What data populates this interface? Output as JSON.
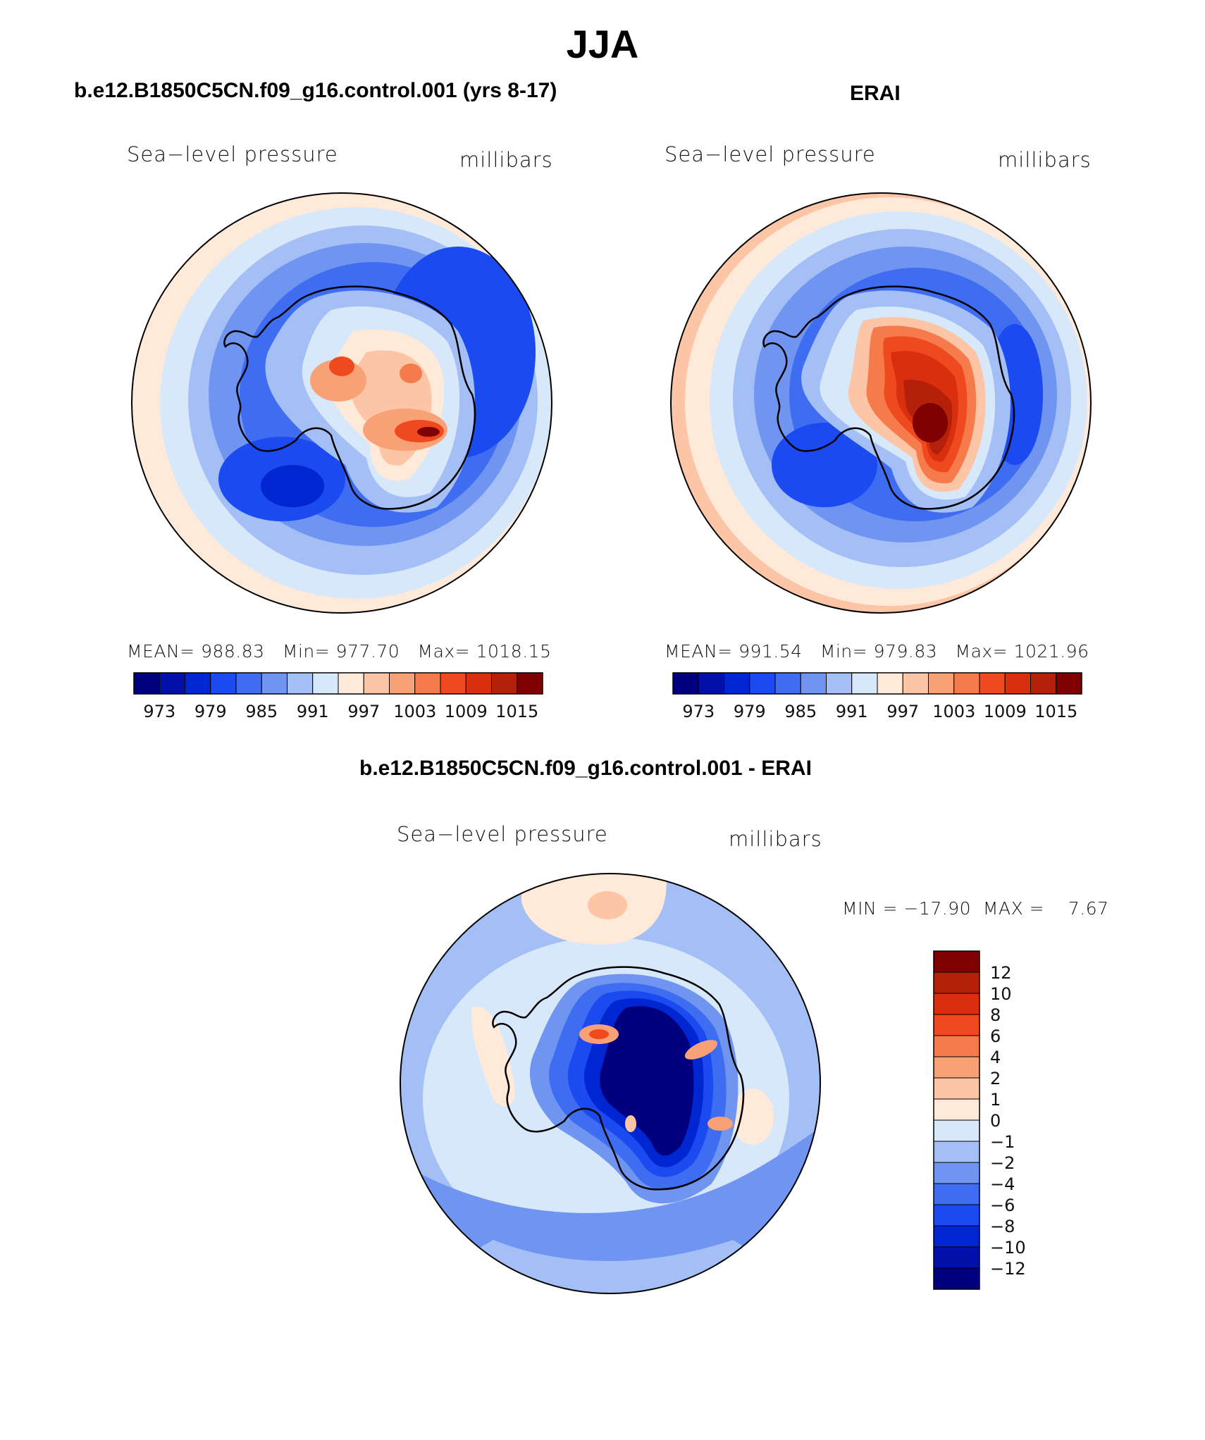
{
  "title": "JJA",
  "panels": [
    {
      "id": "model",
      "title": "b.e12.B1850C5CN.f09_g16.control.001 (yrs 8-17)",
      "left_label": "Sea−level pressure",
      "right_label": "millibars",
      "stats": {
        "mean_label": "MEAN=",
        "mean": "988.83",
        "min_label": "Min=",
        "min": "977.70",
        "max_label": "Max=",
        "max": "1018.15"
      }
    },
    {
      "id": "obs",
      "title": "ERAI",
      "left_label": "Sea−level pressure",
      "right_label": "millibars",
      "stats": {
        "mean_label": "MEAN=",
        "mean": "991.54",
        "min_label": "Min=",
        "min": "979.83",
        "max_label": "Max=",
        "max": "1021.96"
      }
    },
    {
      "id": "diff",
      "title": "b.e12.B1850C5CN.f09_g16.control.001 - ERAI",
      "left_label": "Sea−level pressure",
      "right_label": "millibars",
      "minmax": "MIN = −17.90  MAX =    7.67"
    }
  ],
  "chart_data": [
    {
      "type": "heatmap",
      "projection": "south polar stereographic",
      "title": "b.e12.B1850C5CN.f09_g16.control.001 (yrs 8-17)",
      "variable": "Sea-level pressure",
      "units": "millibars",
      "mean": 988.83,
      "min": 977.7,
      "max": 1018.15,
      "colorbar": {
        "levels": [
          973,
          976,
          979,
          982,
          985,
          988,
          991,
          994,
          997,
          1000,
          1003,
          1006,
          1009,
          1012,
          1015
        ],
        "tick_labels": [
          "973",
          "979",
          "985",
          "991",
          "997",
          "1003",
          "1009",
          "1015"
        ],
        "colors": [
          "#00007f",
          "#0010a8",
          "#0026d1",
          "#1a4af0",
          "#3f6df2",
          "#6f95f0",
          "#a4bff5",
          "#d8e8fb",
          "#ffe9d9",
          "#fcc5a6",
          "#f8a176",
          "#f57a4c",
          "#ef4a1f",
          "#d8300f",
          "#b4200a",
          "#7f0000"
        ]
      }
    },
    {
      "type": "heatmap",
      "projection": "south polar stereographic",
      "title": "ERAI",
      "variable": "Sea-level pressure",
      "units": "millibars",
      "mean": 991.54,
      "min": 979.83,
      "max": 1021.96,
      "colorbar": {
        "levels": [
          973,
          976,
          979,
          982,
          985,
          988,
          991,
          994,
          997,
          1000,
          1003,
          1006,
          1009,
          1012,
          1015
        ],
        "tick_labels": [
          "973",
          "979",
          "985",
          "991",
          "997",
          "1003",
          "1009",
          "1015"
        ],
        "colors": [
          "#00007f",
          "#0010a8",
          "#0026d1",
          "#1a4af0",
          "#3f6df2",
          "#6f95f0",
          "#a4bff5",
          "#d8e8fb",
          "#ffe9d9",
          "#fcc5a6",
          "#f8a176",
          "#f57a4c",
          "#ef4a1f",
          "#d8300f",
          "#b4200a",
          "#7f0000"
        ]
      }
    },
    {
      "type": "heatmap",
      "projection": "south polar stereographic",
      "title": "b.e12.B1850C5CN.f09_g16.control.001 - ERAI",
      "variable": "Sea-level pressure",
      "units": "millibars",
      "min": -17.9,
      "max": 7.67,
      "colorbar": {
        "levels": [
          -12,
          -10,
          -8,
          -6,
          -4,
          -2,
          -1,
          0,
          1,
          2,
          4,
          6,
          8,
          10,
          12
        ],
        "tick_labels": [
          "12",
          "10",
          "8",
          "6",
          "4",
          "2",
          "1",
          "0",
          "−1",
          "−2",
          "−4",
          "−6",
          "−8",
          "−10",
          "−12"
        ],
        "colors_top_to_bottom": [
          "#7f0000",
          "#b4200a",
          "#d8300f",
          "#ef4a1f",
          "#f57a4c",
          "#f8a176",
          "#fcc5a6",
          "#ffe9d9",
          "#d8e8fb",
          "#a4bff5",
          "#6f95f0",
          "#3f6df2",
          "#1a4af0",
          "#0026d1",
          "#0010a8",
          "#00007f"
        ]
      }
    }
  ]
}
